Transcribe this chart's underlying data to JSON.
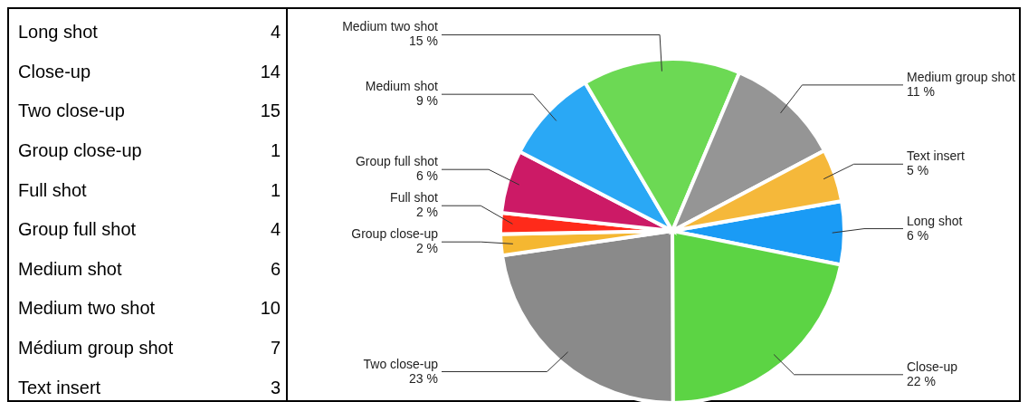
{
  "chart_data": [
    {
      "type": "other",
      "categories": [
        "Long shot",
        "Close-up",
        "Two close-up",
        "Group close-up",
        "Full shot",
        "Group full shot",
        "Medium shot",
        "Medium two shot",
        "Médium group shot",
        "Text insert"
      ],
      "values": [
        4,
        14,
        15,
        1,
        1,
        4,
        6,
        10,
        7,
        3
      ],
      "data_labels": true
    },
    {
      "type": "pie",
      "categories": [
        "Long shot",
        "Close-up",
        "Two close-up",
        "Group close-up",
        "Full shot",
        "Group full shot",
        "Medium shot",
        "Medium two shot",
        "Medium group shot",
        "Text insert"
      ],
      "values": [
        6,
        22,
        23,
        2,
        2,
        6,
        9,
        15,
        11,
        5
      ],
      "value_labels": [
        "6 %",
        "22 %",
        "23 %",
        "2 %",
        "2 %",
        "6 %",
        "9 %",
        "15 %",
        "11 %",
        "5 %"
      ],
      "colors": [
        "#1a9bf5",
        "#5cd444",
        "#8a8a8a",
        "#f5b731",
        "#ff2a1a",
        "#cc1a66",
        "#2aa8f5",
        "#6cd954",
        "#959595",
        "#f5b83a"
      ]
    }
  ]
}
